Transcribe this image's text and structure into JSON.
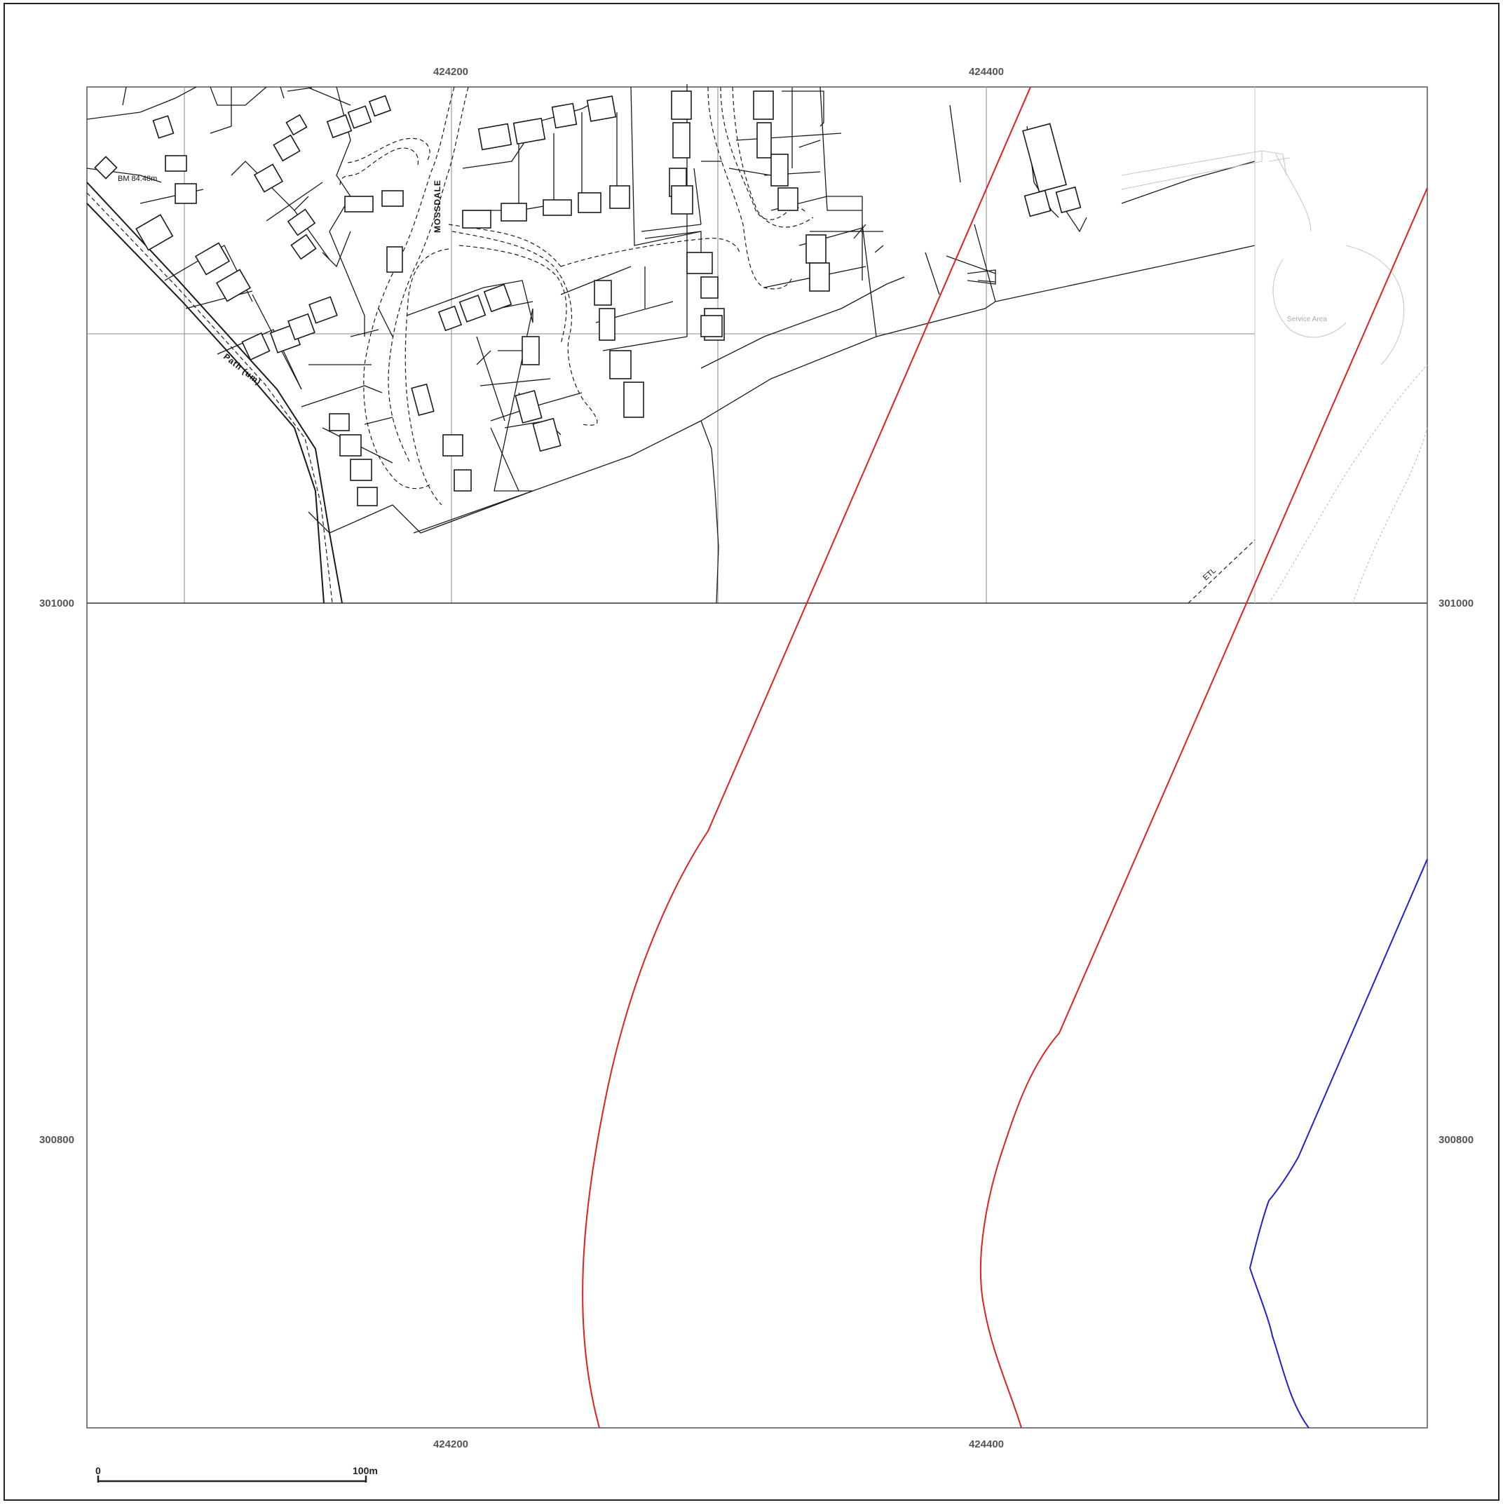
{
  "grid_labels": {
    "easting_top_1": "424200",
    "easting_top_2": "424400",
    "easting_bottom_1": "424200",
    "easting_bottom_2": "424400",
    "northing_left_1": "301000",
    "northing_left_2": "300800",
    "northing_right_1": "301000",
    "northing_right_2": "300800"
  },
  "map_labels": {
    "street": "MOSSDALE",
    "path": "Path (um)",
    "benchmark": "BM 84.48m",
    "electric_line": "ETL",
    "service_area": "Service Area"
  },
  "scale_bar": {
    "start": "0",
    "end": "100m",
    "length_m": 100
  },
  "colors": {
    "red_line": "#e02020",
    "blue_line": "#2020d0",
    "map_ink": "#1a1a1a",
    "grid_label": "#555555"
  }
}
